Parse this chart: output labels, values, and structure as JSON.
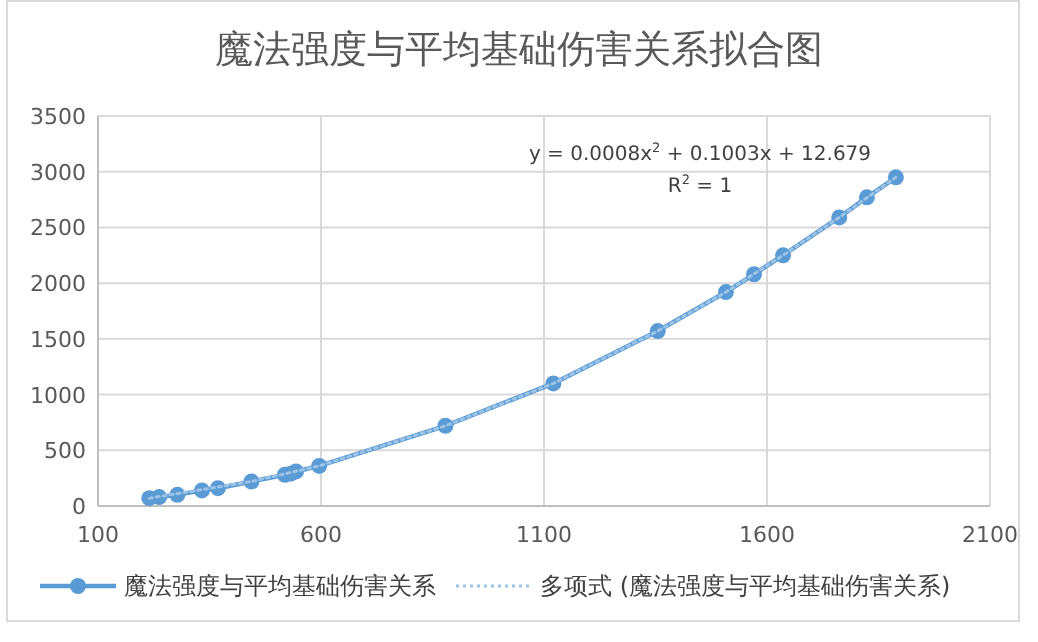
{
  "chart_data": {
    "type": "line",
    "title": "魔法强度与平均基础伤害关系拟合图",
    "xlim": [
      100,
      2100
    ],
    "xticks": [
      100,
      600,
      1100,
      1600,
      2100
    ],
    "ylim": [
      0,
      3500
    ],
    "yticks": [
      0,
      500,
      1000,
      1500,
      2000,
      2500,
      3000,
      3500
    ],
    "grid": true,
    "legend": "bottom",
    "annotations": [
      "y = 0.0008x$^{2}$ + 0.1003x + 12.679",
      "R$^{2}$ = 1"
    ],
    "series": [
      {
        "name": "魔法强度与平均基础伤害关系",
        "color": "#5b9bd5",
        "line_style": "solid",
        "marker": "circle",
        "x": [
          215,
          237,
          278,
          333,
          369,
          444,
          519,
          532,
          544,
          596,
          879,
          1121,
          1355,
          1508,
          1571,
          1636,
          1762,
          1824,
          1889
        ],
        "values": [
          70,
          80,
          100,
          140,
          160,
          220,
          280,
          290,
          310,
          360,
          720,
          1100,
          1570,
          1920,
          2080,
          2250,
          2590,
          2770,
          2950
        ]
      },
      {
        "name": "多项式 (魔法强度与平均基础伤害关系)",
        "color": "#9dc3e6",
        "line_style": "dotted",
        "marker": "none",
        "x": [
          215,
          444,
          596,
          879,
          1121,
          1355,
          1508,
          1636,
          1762,
          1889
        ],
        "values": [
          70,
          220,
          360,
          720,
          1100,
          1570,
          1920,
          2250,
          2590,
          2950
        ]
      }
    ]
  }
}
